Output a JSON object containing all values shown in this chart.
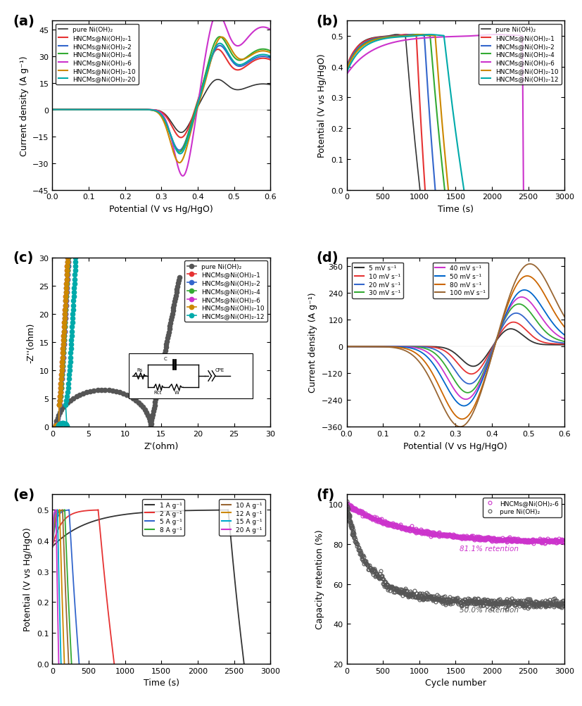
{
  "panel_labels": [
    "(a)",
    "(b)",
    "(c)",
    "(d)",
    "(e)",
    "(f)"
  ],
  "panel_a": {
    "xlabel": "Potential (V vs Hg/HgO)",
    "ylabel": "Current density (A g⁻¹)",
    "xlim": [
      0.0,
      0.6
    ],
    "ylim": [
      -45,
      50
    ],
    "yticks": [
      -45,
      -30,
      -15,
      0,
      15,
      30,
      45
    ],
    "xticks": [
      0.0,
      0.1,
      0.2,
      0.3,
      0.4,
      0.5,
      0.6
    ],
    "colors": [
      "#333333",
      "#e63333",
      "#3366cc",
      "#33aa33",
      "#cc33cc",
      "#cc8800",
      "#00aaaa"
    ],
    "labels": [
      "pure Ni(OH)₂",
      "HNCMs@Ni(OH)₂-1",
      "HNCMs@Ni(OH)₂-2",
      "HNCMs@Ni(OH)₂-4",
      "HNCMs@Ni(OH)₂-6",
      "HNCMs@Ni(OH)₂-10",
      "HNCMs@Ni(OH)₂-20"
    ],
    "peak_ox_val": [
      14,
      28,
      29,
      33,
      45,
      32,
      30
    ],
    "peak_red_val": [
      -13,
      -16,
      -23,
      -24,
      -38,
      -30,
      -25
    ]
  },
  "panel_b": {
    "xlabel": "Time (s)",
    "ylabel": "Potential (V vs Hg/HgO)",
    "xlim": [
      0,
      3000
    ],
    "ylim": [
      0.0,
      0.55
    ],
    "yticks": [
      0.0,
      0.1,
      0.2,
      0.3,
      0.4,
      0.5
    ],
    "xticks": [
      0,
      500,
      1000,
      1500,
      2000,
      2500,
      3000
    ],
    "colors": [
      "#333333",
      "#e63333",
      "#3366cc",
      "#33aa33",
      "#cc33cc",
      "#cc8800",
      "#00aaaa"
    ],
    "labels": [
      "pure Ni(OH)₂",
      "HNCMs@Ni(OH)₂-1",
      "HNCMs@Ni(OH)₂-2",
      "HNCMs@Ni(OH)₂-4",
      "HNCMs@Ni(OH)₂-6",
      "HNCMs@Ni(OH)₂-10",
      "HNCMs@Ni(OH)₂-12"
    ]
  },
  "panel_c": {
    "xlabel": "Z'(ohm)",
    "ylabel": "-Z''(ohm)",
    "xlim": [
      0,
      30
    ],
    "ylim": [
      0,
      30
    ],
    "xticks": [
      0,
      5,
      10,
      15,
      20,
      25,
      30
    ],
    "yticks": [
      0,
      5,
      10,
      15,
      20,
      25,
      30
    ],
    "colors": [
      "#555555",
      "#e63333",
      "#3366cc",
      "#33aa33",
      "#cc33cc",
      "#cc8800",
      "#00aaaa"
    ],
    "labels": [
      "pure Ni(OH)₂",
      "HNCMs@Ni(OH)₂-1",
      "HNCMs@Ni(OH)₂-2",
      "HNCMs@Ni(OH)₂-4",
      "HNCMs@Ni(OH)₂-6",
      "HNCMs@Ni(OH)₂-10",
      "HNCMs@Ni(OH)₂-12"
    ]
  },
  "panel_d": {
    "xlabel": "Potential (V vs Hg/HgO)",
    "ylabel": "Current density (A g⁻¹)",
    "xlim": [
      0.0,
      0.6
    ],
    "ylim": [
      -360,
      400
    ],
    "yticks": [
      -360,
      -240,
      -120,
      0,
      120,
      240,
      360
    ],
    "xticks": [
      0.0,
      0.1,
      0.2,
      0.3,
      0.4,
      0.5,
      0.6
    ],
    "labels": [
      "5 mV s⁻¹",
      "10 mV s⁻¹",
      "20 mV s⁻¹",
      "30 mV s⁻¹",
      "40 mV s⁻¹",
      "50 mV s⁻¹",
      "80 mV s⁻¹",
      "100 mV s⁻¹"
    ],
    "scan_colors": [
      "#333333",
      "#e63333",
      "#3366cc",
      "#33aa33",
      "#cc33cc",
      "#0066cc",
      "#cc6600",
      "#996633"
    ],
    "peak_ox_vals": [
      80,
      110,
      150,
      190,
      220,
      250,
      310,
      360
    ],
    "peak_red_vals": [
      -90,
      -125,
      -170,
      -210,
      -240,
      -270,
      -330,
      -365
    ]
  },
  "panel_e": {
    "xlabel": "Time (s)",
    "ylabel": "Potential (V vs Hg/HgO)",
    "xlim": [
      0,
      3000
    ],
    "ylim": [
      0.0,
      0.55
    ],
    "yticks": [
      0.0,
      0.1,
      0.2,
      0.3,
      0.4,
      0.5
    ],
    "xticks": [
      0,
      500,
      1000,
      1500,
      2000,
      2500,
      3000
    ],
    "labels": [
      "1 A g⁻¹",
      "2 A g⁻¹",
      "5 A g⁻¹",
      "8 A g⁻¹",
      "10 A g⁻¹",
      "12 A g⁻¹",
      "15 A g⁻¹",
      "20 A g⁻¹"
    ],
    "e_colors": [
      "#333333",
      "#e63333",
      "#3366cc",
      "#33aa33",
      "#996633",
      "#cc8800",
      "#00aacc",
      "#cc33cc"
    ],
    "charge_times": [
      2420,
      630,
      230,
      170,
      140,
      100,
      70,
      50
    ]
  },
  "panel_f": {
    "xlabel": "Cycle number",
    "ylabel": "Capacity retention (%)",
    "xlim": [
      0,
      3000
    ],
    "ylim": [
      20,
      105
    ],
    "yticks": [
      20,
      40,
      60,
      80,
      100
    ],
    "xticks": [
      0,
      500,
      1000,
      1500,
      2000,
      2500,
      3000
    ],
    "colors": [
      "#cc33cc",
      "#555555"
    ],
    "labels": [
      "HNCMs@Ni(OH)₂-6",
      "pure Ni(OH)₂"
    ],
    "annotation1": "81.1% retention",
    "annotation2": "50.0% retention",
    "ann1_color": "#cc33cc",
    "ann2_color": "#555555"
  }
}
